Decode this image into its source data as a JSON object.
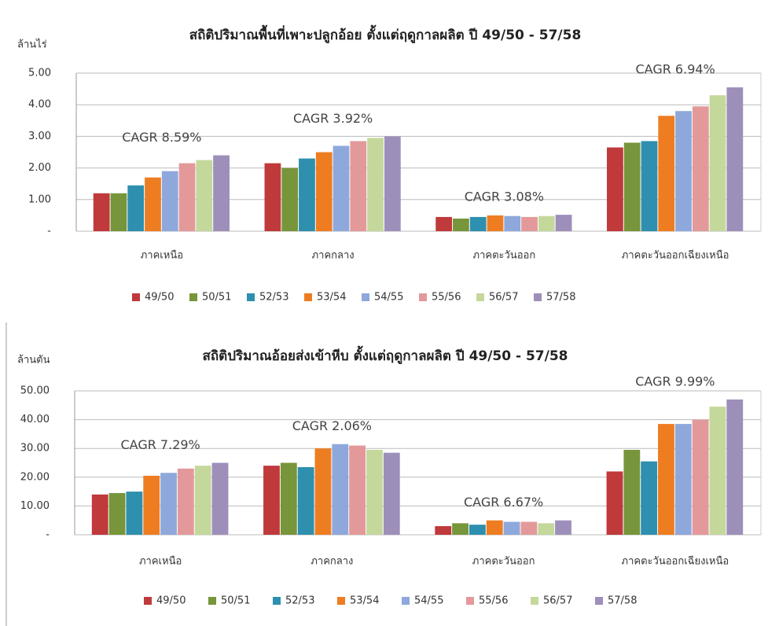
{
  "chart_data": [
    {
      "type": "bar",
      "title": "สถิติปริมาณพื้นที่เพาะปลูกอ้อย ตั้งแต่ฤดูกาลผลิต ปี 49/50 - 57/58",
      "y_label": "ล้านไร่",
      "categories": [
        "ภาคเหนือ",
        "ภาคกลาง",
        "ภาคตะวันออก",
        "ภาคตะวันออกเฉียงเหนือ"
      ],
      "annotations": [
        "CAGR 8.59%",
        "CAGR 3.92%",
        "CAGR 3.08%",
        "CAGR 6.94%"
      ],
      "series": [
        {
          "name": "49/50",
          "color": "#c0393b",
          "values": [
            1.2,
            2.15,
            0.45,
            2.65
          ]
        },
        {
          "name": "50/51",
          "color": "#77953a",
          "values": [
            1.2,
            2.0,
            0.4,
            2.8
          ]
        },
        {
          "name": "52/53",
          "color": "#2e8fae",
          "values": [
            1.45,
            2.3,
            0.45,
            2.85
          ]
        },
        {
          "name": "53/54",
          "color": "#ee7d22",
          "values": [
            1.7,
            2.5,
            0.5,
            3.65
          ]
        },
        {
          "name": "54/55",
          "color": "#8ea8dc",
          "values": [
            1.9,
            2.7,
            0.48,
            3.8
          ]
        },
        {
          "name": "55/56",
          "color": "#e3999a",
          "values": [
            2.15,
            2.85,
            0.45,
            3.95
          ]
        },
        {
          "name": "56/57",
          "color": "#c4d89c",
          "values": [
            2.25,
            2.95,
            0.48,
            4.3
          ]
        },
        {
          "name": "57/58",
          "color": "#9d8fba",
          "values": [
            2.4,
            3.0,
            0.52,
            4.55
          ]
        }
      ],
      "ylim": [
        0,
        5
      ],
      "yticks": [
        {
          "value": 0,
          "label": "-"
        },
        {
          "value": 1,
          "label": "1.00"
        },
        {
          "value": 2,
          "label": "2.00"
        },
        {
          "value": 3,
          "label": "3.00"
        },
        {
          "value": 4,
          "label": "4.00"
        },
        {
          "value": 5,
          "label": "5.00"
        }
      ],
      "grid": true,
      "legend": "bottom"
    },
    {
      "type": "bar",
      "title": "สถิติปริมาณอ้อยส่งเข้าหีบ ตั้งแต่ฤดูกาลผลิต ปี 49/50 - 57/58",
      "y_label": "ล้านตัน",
      "categories": [
        "ภาคเหนือ",
        "ภาคกลาง",
        "ภาคตะวันออก",
        "ภาคตะวันออกเฉียงเหนือ"
      ],
      "annotations": [
        "CAGR 7.29%",
        "CAGR 2.06%",
        "CAGR 6.67%",
        "CAGR 9.99%"
      ],
      "series": [
        {
          "name": "49/50",
          "color": "#c0393b",
          "values": [
            14,
            24,
            3,
            22
          ]
        },
        {
          "name": "50/51",
          "color": "#77953a",
          "values": [
            14.5,
            25,
            4,
            29.5
          ]
        },
        {
          "name": "52/53",
          "color": "#2e8fae",
          "values": [
            15,
            23.5,
            3.5,
            25.5
          ]
        },
        {
          "name": "53/54",
          "color": "#ee7d22",
          "values": [
            20.5,
            30,
            5,
            38.5
          ]
        },
        {
          "name": "54/55",
          "color": "#8ea8dc",
          "values": [
            21.5,
            31.5,
            4.5,
            38.5
          ]
        },
        {
          "name": "55/56",
          "color": "#e3999a",
          "values": [
            23,
            31,
            4.5,
            40
          ]
        },
        {
          "name": "56/57",
          "color": "#c4d89c",
          "values": [
            24,
            29.5,
            4,
            44.5
          ]
        },
        {
          "name": "57/58",
          "color": "#9d8fba",
          "values": [
            25,
            28.5,
            5,
            47
          ]
        }
      ],
      "ylim": [
        0,
        50
      ],
      "yticks": [
        {
          "value": 0,
          "label": "-"
        },
        {
          "value": 10,
          "label": "10.00"
        },
        {
          "value": 20,
          "label": "20.00"
        },
        {
          "value": 30,
          "label": "30.00"
        },
        {
          "value": 40,
          "label": "40.00"
        },
        {
          "value": 50,
          "label": "50.00"
        }
      ],
      "grid": true,
      "legend": "bottom"
    }
  ]
}
